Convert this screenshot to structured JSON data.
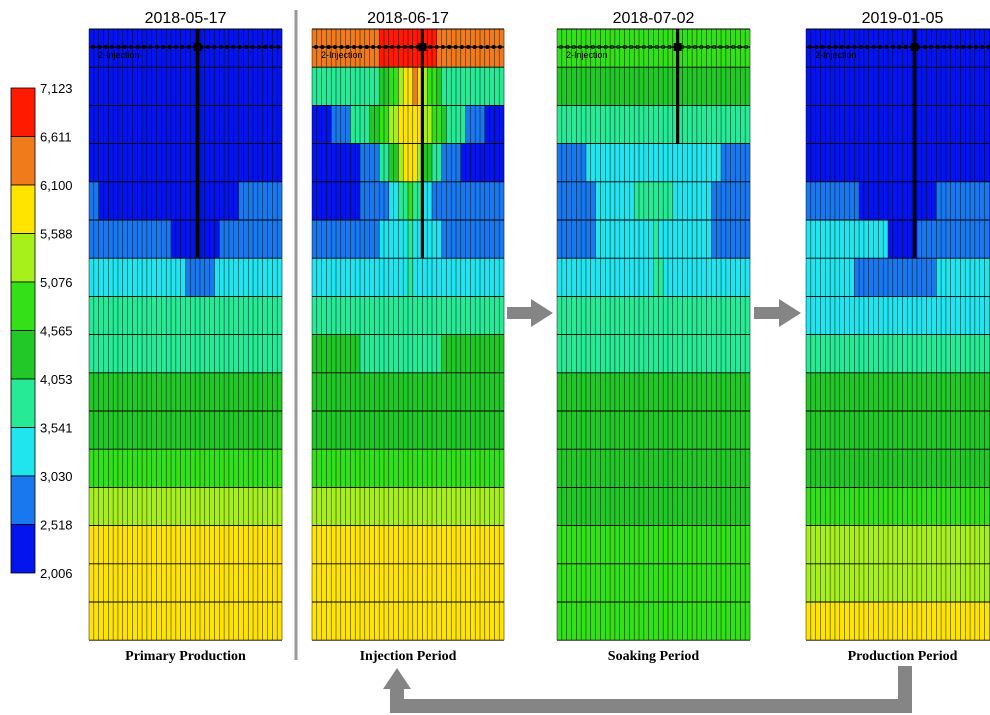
{
  "chart_data": {
    "type": "heatmap",
    "legend": {
      "values": [
        "7,123",
        "6,611",
        "6,100",
        "5,588",
        "5,076",
        "4,565",
        "4,053",
        "3,541",
        "3,030",
        "2,518",
        "2,006"
      ],
      "colors": [
        "#ff1a00",
        "#f07b1a",
        "#ffe400",
        "#a8f01c",
        "#34e018",
        "#22c828",
        "#26ea96",
        "#20e4ee",
        "#1a78ee",
        "#0414ee"
      ]
    },
    "well_label": "2-Injection",
    "panels": [
      {
        "date": "2018-05-17",
        "period": "Primary Production",
        "rows": [
          [
            9
          ],
          [
            9
          ],
          [
            9
          ],
          [
            9
          ],
          [
            8,
            8,
            9,
            9,
            9,
            9,
            9,
            9,
            9,
            9,
            9,
            9,
            9,
            9,
            9,
            9,
            9,
            9,
            9,
            9,
            9,
            9,
            9,
            9,
            9,
            9,
            9,
            9,
            9,
            9,
            9,
            8,
            8,
            8,
            8,
            8,
            8,
            8,
            8,
            8
          ],
          [
            8,
            8,
            8,
            8,
            8,
            8,
            8,
            8,
            8,
            8,
            8,
            8,
            8,
            8,
            8,
            8,
            8,
            9,
            9,
            9,
            9,
            9,
            9,
            9,
            9,
            9,
            9,
            8,
            8,
            8,
            8,
            8,
            8,
            8,
            8,
            8,
            8,
            8,
            8,
            8
          ],
          [
            7,
            7,
            7,
            7,
            7,
            7,
            7,
            7,
            7,
            7,
            7,
            7,
            7,
            7,
            7,
            7,
            7,
            7,
            7,
            7,
            8,
            8,
            8,
            8,
            8,
            8,
            7,
            7,
            7,
            7,
            7,
            7,
            7,
            7,
            7,
            7,
            7,
            7,
            7,
            7
          ],
          [
            6
          ],
          [
            6
          ],
          [
            5
          ],
          [
            5
          ],
          [
            4
          ],
          [
            3
          ],
          [
            2
          ],
          [
            2
          ],
          [
            2
          ],
          [
            2
          ]
        ]
      },
      {
        "date": "2018-06-17",
        "period": "Injection Period",
        "rows": [
          [
            1,
            1,
            1,
            1,
            1,
            1,
            1,
            1,
            1,
            1,
            1,
            1,
            1,
            1,
            0,
            0,
            0,
            0,
            0,
            0,
            0,
            0,
            0,
            0,
            0,
            0,
            1,
            1,
            1,
            1,
            1,
            1,
            1,
            1,
            1,
            1,
            1,
            1,
            1,
            1
          ],
          [
            6,
            6,
            6,
            6,
            6,
            6,
            6,
            6,
            6,
            6,
            6,
            6,
            6,
            6,
            5,
            5,
            4,
            4,
            3,
            2,
            2,
            1,
            2,
            3,
            4,
            4,
            5,
            6,
            6,
            6,
            6,
            6,
            6,
            6,
            6,
            6,
            6,
            6,
            6,
            6
          ],
          [
            9,
            9,
            9,
            9,
            8,
            8,
            8,
            8,
            6,
            6,
            6,
            6,
            5,
            5,
            4,
            4,
            3,
            3,
            2,
            2,
            2,
            2,
            2,
            3,
            3,
            4,
            4,
            5,
            6,
            6,
            6,
            6,
            8,
            8,
            8,
            8,
            9,
            9,
            9,
            9
          ],
          [
            9,
            9,
            9,
            9,
            9,
            9,
            9,
            9,
            9,
            9,
            8,
            8,
            8,
            8,
            6,
            6,
            5,
            5,
            3,
            2,
            2,
            2,
            3,
            5,
            5,
            6,
            6,
            8,
            8,
            8,
            8,
            9,
            9,
            9,
            9,
            9,
            9,
            9,
            9,
            9
          ],
          [
            9,
            9,
            9,
            9,
            9,
            9,
            9,
            9,
            9,
            9,
            8,
            8,
            8,
            8,
            8,
            8,
            7,
            7,
            6,
            6,
            4,
            6,
            6,
            7,
            7,
            8,
            8,
            8,
            8,
            8,
            8,
            8,
            8,
            8,
            8,
            8,
            8,
            8,
            8,
            8
          ],
          [
            8,
            8,
            8,
            8,
            8,
            8,
            8,
            8,
            8,
            8,
            8,
            8,
            8,
            8,
            7,
            7,
            7,
            7,
            7,
            7,
            6,
            7,
            7,
            7,
            7,
            7,
            7,
            8,
            8,
            8,
            8,
            8,
            8,
            8,
            8,
            8,
            8,
            8,
            8,
            8
          ],
          [
            7,
            7,
            7,
            7,
            7,
            7,
            7,
            7,
            7,
            7,
            7,
            7,
            7,
            7,
            7,
            7,
            7,
            7,
            7,
            7,
            6,
            7,
            7,
            7,
            7,
            7,
            7,
            7,
            7,
            7,
            7,
            7,
            7,
            7,
            7,
            7,
            7,
            7,
            7,
            7
          ],
          [
            6
          ],
          [
            5,
            5,
            5,
            5,
            5,
            5,
            5,
            5,
            5,
            5,
            6,
            6,
            6,
            6,
            6,
            6,
            6,
            6,
            6,
            6,
            6,
            6,
            6,
            6,
            6,
            6,
            6,
            5,
            5,
            5,
            5,
            5,
            5,
            5,
            5,
            5,
            5,
            5,
            5,
            5
          ],
          [
            5
          ],
          [
            5
          ],
          [
            4
          ],
          [
            3
          ],
          [
            2
          ],
          [
            2
          ],
          [
            2
          ],
          [
            2
          ]
        ]
      },
      {
        "date": "2018-07-02",
        "period": "Soaking Period",
        "rows": [
          [
            4
          ],
          [
            5
          ],
          [
            6
          ],
          [
            8,
            8,
            8,
            8,
            8,
            8,
            7,
            7,
            7,
            7,
            7,
            7,
            7,
            7,
            7,
            7,
            7,
            7,
            7,
            7,
            7,
            7,
            7,
            7,
            7,
            7,
            7,
            7,
            7,
            7,
            7,
            7,
            7,
            7,
            8,
            8,
            8,
            8,
            8,
            8
          ],
          [
            8,
            8,
            8,
            8,
            8,
            8,
            8,
            8,
            7,
            7,
            7,
            7,
            7,
            7,
            7,
            7,
            6,
            6,
            6,
            6,
            6,
            6,
            6,
            6,
            7,
            7,
            7,
            7,
            7,
            7,
            7,
            7,
            8,
            8,
            8,
            8,
            8,
            8,
            8,
            8
          ],
          [
            8,
            8,
            8,
            8,
            8,
            8,
            8,
            8,
            7,
            7,
            7,
            7,
            7,
            7,
            7,
            7,
            7,
            7,
            7,
            7,
            6,
            7,
            7,
            7,
            7,
            7,
            7,
            7,
            7,
            7,
            7,
            7,
            8,
            8,
            8,
            8,
            8,
            8,
            8,
            8
          ],
          [
            7,
            7,
            7,
            7,
            7,
            7,
            7,
            7,
            7,
            7,
            7,
            7,
            7,
            7,
            7,
            7,
            7,
            7,
            7,
            7,
            6,
            6,
            7,
            7,
            7,
            7,
            7,
            7,
            7,
            7,
            7,
            7,
            7,
            7,
            7,
            7,
            7,
            7,
            7,
            7
          ],
          [
            6
          ],
          [
            6
          ],
          [
            5
          ],
          [
            5
          ],
          [
            5
          ],
          [
            5
          ],
          [
            4
          ],
          [
            4
          ],
          [
            4
          ],
          [
            2
          ]
        ]
      },
      {
        "date": "2019-01-05",
        "period": "Production Period",
        "rows": [
          [
            9
          ],
          [
            9
          ],
          [
            9
          ],
          [
            9
          ],
          [
            8,
            8,
            8,
            8,
            8,
            8,
            8,
            8,
            8,
            8,
            8,
            9,
            9,
            9,
            9,
            9,
            9,
            9,
            9,
            9,
            9,
            9,
            9,
            9,
            9,
            9,
            9,
            8,
            8,
            8,
            8,
            8,
            8,
            8,
            8,
            8,
            8,
            8,
            8,
            8
          ],
          [
            7,
            7,
            7,
            7,
            7,
            7,
            7,
            7,
            7,
            7,
            7,
            7,
            7,
            7,
            7,
            7,
            7,
            9,
            9,
            9,
            9,
            9,
            9,
            8,
            8,
            8,
            8,
            8,
            8,
            8,
            8,
            8,
            8,
            8,
            8,
            8,
            8,
            8,
            8,
            8
          ],
          [
            7,
            7,
            7,
            7,
            7,
            7,
            7,
            7,
            7,
            7,
            8,
            8,
            8,
            8,
            8,
            8,
            8,
            8,
            8,
            8,
            8,
            8,
            8,
            8,
            8,
            8,
            8,
            7,
            7,
            7,
            7,
            7,
            7,
            7,
            7,
            7,
            7,
            7,
            7,
            7
          ],
          [
            7
          ],
          [
            6
          ],
          [
            5
          ],
          [
            5
          ],
          [
            5
          ],
          [
            4
          ],
          [
            3
          ],
          [
            3
          ],
          [
            2
          ],
          [
            2
          ]
        ]
      }
    ]
  }
}
